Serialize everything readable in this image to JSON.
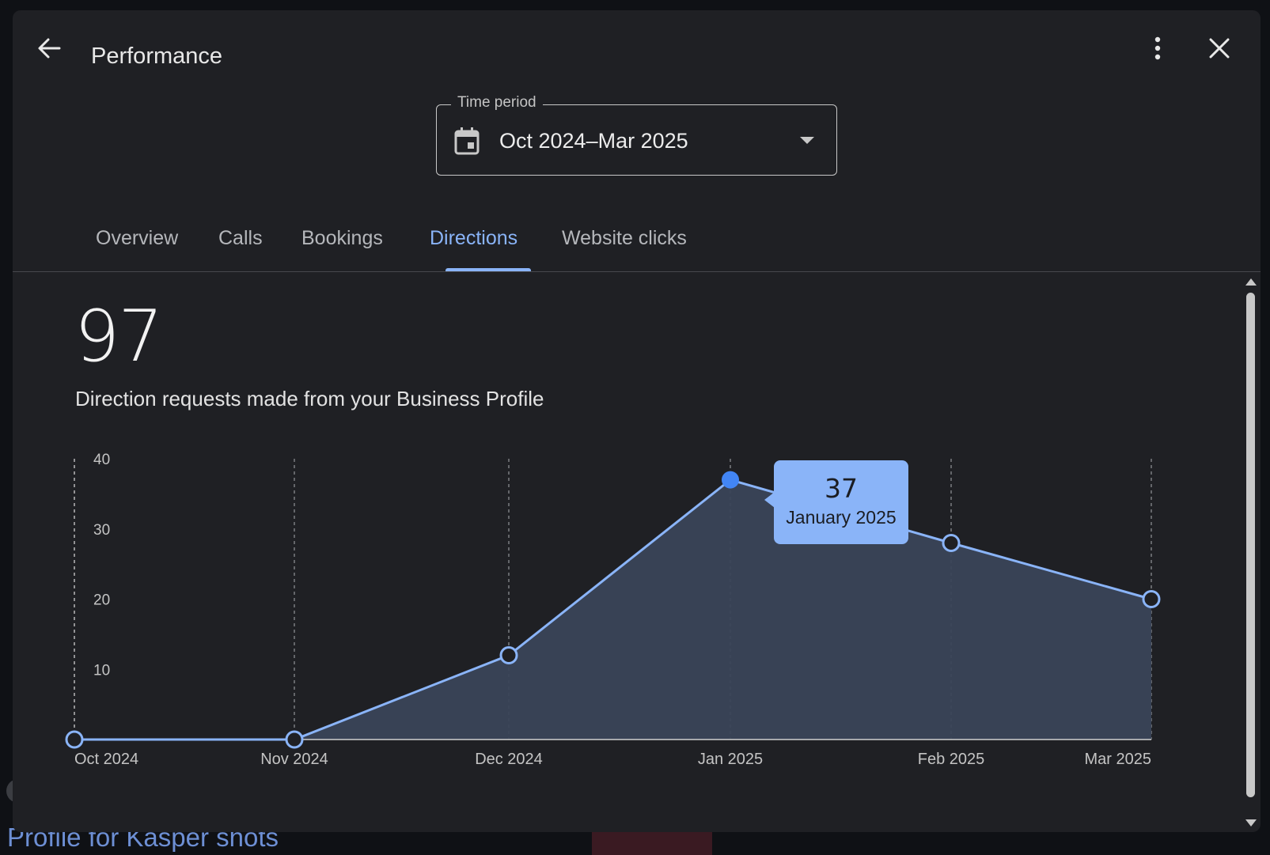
{
  "background": {
    "title_text": "Profile for Kasper shots"
  },
  "dialog": {
    "title": "Performance",
    "icons": {
      "back": "arrow-back-icon",
      "more": "more-vert-icon",
      "close": "close-icon"
    }
  },
  "time_period": {
    "label": "Time period",
    "value": "Oct 2024–Mar 2025",
    "icon": "calendar-icon"
  },
  "tabs": [
    {
      "label": "Overview",
      "active": false
    },
    {
      "label": "Calls",
      "active": false
    },
    {
      "label": "Bookings",
      "active": false
    },
    {
      "label": "Directions",
      "active": true
    },
    {
      "label": "Website clicks",
      "active": false
    }
  ],
  "summary": {
    "total": "97",
    "description": "Direction requests made from your Business Profile"
  },
  "chart_data": {
    "type": "area",
    "categories": [
      "Oct 2024",
      "Nov 2024",
      "Dec 2024",
      "Jan 2025",
      "Feb 2025",
      "Mar 2025"
    ],
    "values": [
      0,
      0,
      12,
      37,
      28,
      20
    ],
    "y_ticks": [
      "10",
      "20",
      "30",
      "40"
    ],
    "ylim": [
      0,
      40
    ],
    "grid": "vertical-dashed",
    "line_color": "#8ab4f8",
    "fill_color": "#3a4458",
    "highlight": {
      "index": 3,
      "value": "37",
      "label": "January 2025"
    }
  }
}
